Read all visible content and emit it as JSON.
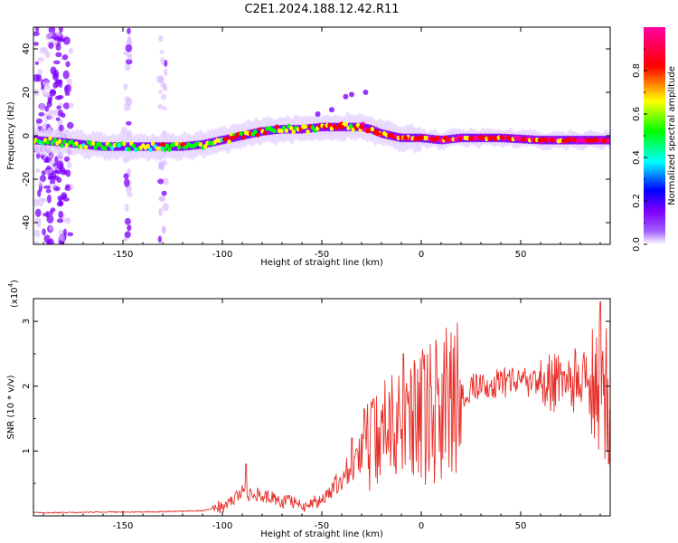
{
  "title": "C2E1.2024.188.12.42.R11",
  "chart_data": [
    {
      "type": "heatmap",
      "xlabel": "Height of straight line (km)",
      "ylabel": "Frequency (Hz)",
      "xlim": [
        -195,
        95
      ],
      "ylim": [
        -50,
        50
      ],
      "xticks": [
        -150,
        -100,
        -50,
        0,
        50
      ],
      "yticks": [
        -40,
        -20,
        0,
        20,
        40
      ],
      "grid": false,
      "colorbar": {
        "label": "Normalized spectral amplitude",
        "range": [
          0,
          1
        ],
        "ticks": [
          "0.0",
          "0.2",
          "0.4",
          "0.6",
          "0.8"
        ],
        "colormap": [
          "#ffffff",
          "#7f00ff",
          "#0000ff",
          "#00ffff",
          "#00ff00",
          "#ffff00",
          "#ff0000",
          "#ff00a0"
        ]
      },
      "ridge": {
        "x": [
          -195,
          -180,
          -160,
          -140,
          -120,
          -110,
          -100,
          -90,
          -80,
          -70,
          -60,
          -50,
          -40,
          -30,
          -25,
          -20,
          -10,
          0,
          10,
          20,
          40,
          60,
          80,
          95
        ],
        "y": [
          -2,
          -3,
          -5,
          -5,
          -5,
          -4,
          -2,
          0,
          2,
          3,
          3,
          4,
          4,
          4,
          3,
          1,
          -1,
          -1,
          -2,
          -1,
          -1,
          -2,
          -2,
          -2
        ]
      },
      "stripes_x": [
        -190,
        -185,
        -180,
        -148,
        -130
      ]
    },
    {
      "type": "line",
      "xlabel": "Height of straight line (km)",
      "ylabel": "SNR (10 * v/v)",
      "yscale_label": "(x10",
      "yscale_exp": "4",
      "xlim": [
        -195,
        95
      ],
      "ylim": [
        0,
        3.35
      ],
      "xticks": [
        -150,
        -100,
        -50,
        0,
        50
      ],
      "yticks": [
        1,
        2,
        3
      ],
      "grid": false,
      "color": "#e8302a",
      "series": [
        {
          "x": [
            -195,
            -180,
            -160,
            -140,
            -120,
            -110,
            -100,
            -95,
            -90,
            -85,
            -80,
            -75,
            -70,
            -65,
            -60,
            -55,
            -50,
            -45,
            -40,
            -35,
            -30,
            -25,
            -20,
            -15,
            -10,
            -5,
            0,
            5,
            10,
            15,
            20,
            25,
            30,
            40,
            50,
            60,
            70,
            80,
            85,
            90,
            93,
            95
          ],
          "y": [
            0.05,
            0.05,
            0.06,
            0.06,
            0.07,
            0.08,
            0.15,
            0.25,
            0.35,
            0.35,
            0.3,
            0.28,
            0.2,
            0.22,
            0.15,
            0.2,
            0.25,
            0.4,
            0.6,
            0.8,
            1.0,
            1.1,
            1.2,
            1.3,
            1.35,
            1.4,
            1.5,
            1.6,
            1.7,
            1.75,
            1.85,
            1.95,
            2.0,
            2.05,
            2.05,
            2.05,
            2.05,
            2.1,
            2.0,
            1.95,
            2.2,
            1.4
          ],
          "peaks": [
            {
              "x": -88,
              "y": 0.8
            },
            {
              "x": -35,
              "y": 1.2
            },
            {
              "x": -24,
              "y": 1.8
            },
            {
              "x": -9,
              "y": 2.5
            },
            {
              "x": 5,
              "y": 2.0
            },
            {
              "x": 90,
              "y": 3.3
            }
          ]
        }
      ]
    }
  ]
}
